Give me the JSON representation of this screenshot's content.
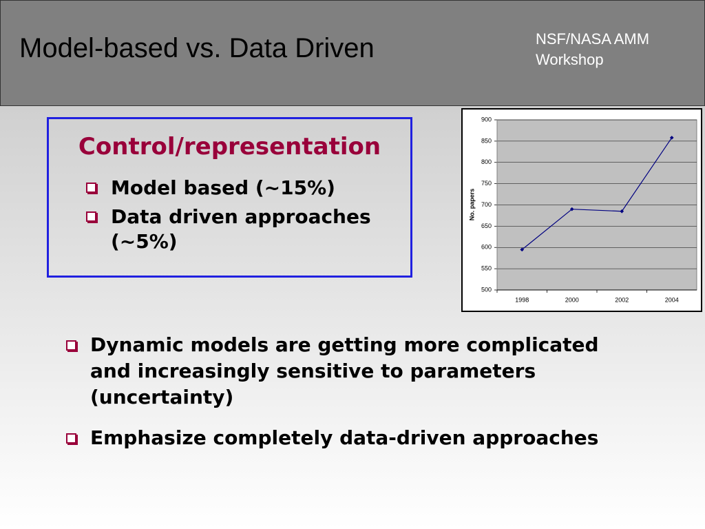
{
  "header": {
    "title": "Model-based vs. Data Driven",
    "subtitle": "NSF/NASA AMM Workshop"
  },
  "box": {
    "heading": "Control/representation",
    "bullets": [
      "Model based (~15%)",
      "Data driven approaches (~5%)"
    ]
  },
  "bullets": [
    "Dynamic models are getting more complicated and increasingly sensitive to parameters (uncertainty)",
    "Emphasize completely data-driven approaches"
  ],
  "chart_data": {
    "type": "line",
    "y_label": "No. papers",
    "categories": [
      "1998",
      "2000",
      "2002",
      "2004"
    ],
    "values": [
      595,
      690,
      685,
      858
    ],
    "color": "#000080",
    "ylim": [
      500,
      900
    ],
    "yticks": [
      500,
      550,
      600,
      650,
      700,
      750,
      800,
      850,
      900
    ],
    "grid": true
  }
}
